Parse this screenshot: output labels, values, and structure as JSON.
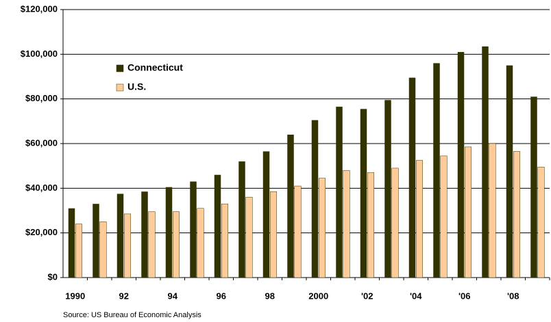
{
  "chart_data": {
    "type": "bar",
    "categories": [
      "1990",
      null,
      "92",
      null,
      "94",
      null,
      "96",
      null,
      "98",
      null,
      "2000",
      null,
      "'02",
      null,
      "'04",
      null,
      "'06",
      null,
      "'08",
      null
    ],
    "series": [
      {
        "name": "Connecticut",
        "color": "#333300",
        "values": [
          31000,
          33000,
          37500,
          38500,
          40500,
          43000,
          46000,
          52000,
          56500,
          64000,
          70500,
          76500,
          75500,
          79500,
          89500,
          96000,
          101000,
          103500,
          95000,
          81000
        ]
      },
      {
        "name": "U.S.",
        "color": "#ffcc99",
        "values": [
          24000,
          25000,
          28500,
          29500,
          29500,
          31000,
          33000,
          36000,
          38500,
          41000,
          44500,
          48000,
          47000,
          49000,
          52500,
          54500,
          58500,
          60000,
          56500,
          49500
        ]
      }
    ],
    "ylim": [
      0,
      120000
    ],
    "yticks": [
      {
        "value": 0,
        "label": "$0"
      },
      {
        "value": 20000,
        "label": "$20,000"
      },
      {
        "value": 40000,
        "label": "$40,000"
      },
      {
        "value": 60000,
        "label": "$60,000"
      },
      {
        "value": 80000,
        "label": "$80,000"
      },
      {
        "value": 100000,
        "label": "$100,000"
      },
      {
        "value": 120000,
        "label": "$120,000"
      }
    ],
    "grid": true,
    "legend": "upper left",
    "source": "Source:  US Bureau of Economic Analysis"
  }
}
